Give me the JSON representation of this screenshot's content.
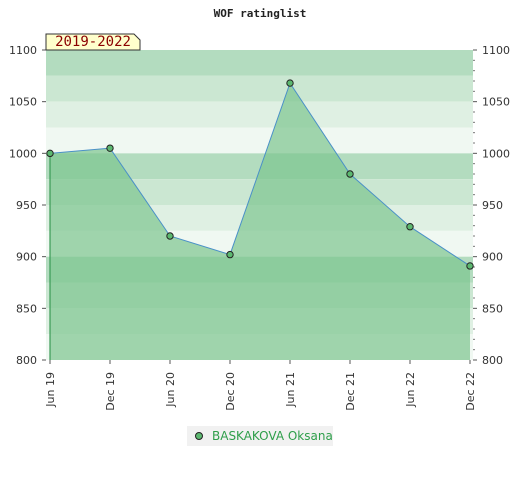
{
  "chart_data": {
    "type": "area",
    "title": "WOF ratinglist",
    "period_badge": "2019-2022",
    "x": [
      "Jun 19",
      "Dec 19",
      "Jun 20",
      "Dec 20",
      "Jun 21",
      "Dec 21",
      "Jun 22",
      "Dec 22"
    ],
    "series": [
      {
        "name": "BASKAKOVA Oksana",
        "values": [
          1000,
          1005,
          920,
          902,
          1068,
          980,
          929,
          891
        ]
      }
    ],
    "ylim": [
      800,
      1100
    ],
    "yticks": [
      "800",
      "850",
      "900",
      "950",
      "1000",
      "1050",
      "1100"
    ],
    "y_axes": "left and right",
    "legend_position": "bottom-center",
    "colors": {
      "area_fill": "#7cc48f",
      "line": "#4a90c8",
      "marker": "#5cb870",
      "band_dark": "#b3dcbf",
      "band_mid": "#cbe7d2",
      "band_light": "#dff0e3",
      "band_pale": "#f0f8f2",
      "badge_bg": "#ffffcc",
      "legend_text": "#2e9e4a"
    }
  }
}
